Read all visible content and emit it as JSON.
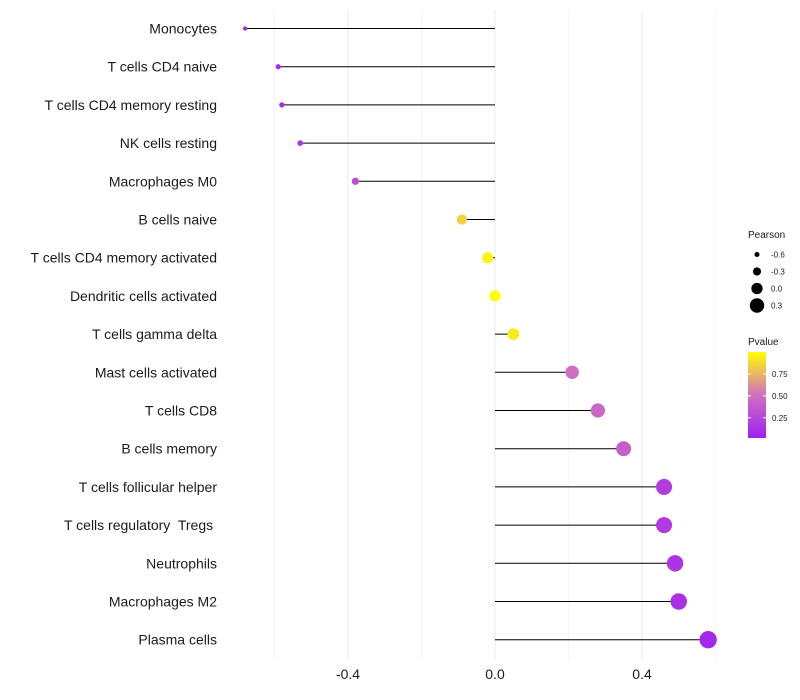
{
  "chart_data": {
    "type": "lollipop",
    "title": "",
    "xlabel": "",
    "ylabel": "",
    "xlim": [
      -0.68,
      0.62
    ],
    "x_ticks": [
      -0.4,
      0.0,
      0.4
    ],
    "x_tick_labels": [
      "-0.4",
      "0.0",
      "0.4"
    ],
    "grid": true,
    "baseline": 0.0,
    "categories": [
      "Monocytes",
      "T cells CD4 naive",
      "T cells CD4 memory resting",
      "NK cells resting",
      "Macrophages M0",
      "B cells naive",
      "T cells CD4 memory activated",
      "Dendritic cells activated",
      "T cells gamma delta",
      "Mast cells activated",
      "T cells CD8",
      "B cells memory",
      "T cells follicular helper",
      "T cells regulatory  Tregs ",
      "Neutrophils",
      "Macrophages M2",
      "Plasma cells"
    ],
    "pearson": [
      -0.68,
      -0.59,
      -0.58,
      -0.53,
      -0.38,
      -0.09,
      -0.02,
      0.0,
      0.05,
      0.21,
      0.28,
      0.35,
      0.46,
      0.46,
      0.49,
      0.5,
      0.58
    ],
    "pvalue": [
      0.05,
      0.08,
      0.1,
      0.15,
      0.3,
      0.85,
      0.97,
      1.0,
      0.93,
      0.5,
      0.45,
      0.4,
      0.2,
      0.18,
      0.14,
      0.12,
      0.06
    ],
    "legend_size": {
      "title": "Pearson",
      "values": [
        -0.6,
        -0.3,
        0.0,
        0.3
      ],
      "labels": [
        "-0.6",
        "-0.3",
        "0.0",
        "0.3"
      ]
    },
    "legend_color": {
      "title": "Pvalue",
      "range": [
        0.02,
        1.0
      ],
      "ticks": [
        0.25,
        0.5,
        0.75
      ],
      "labels": [
        "0.25",
        "0.50",
        "0.75"
      ],
      "low_color": "#a020f0",
      "high_color": "#ffff00"
    }
  }
}
